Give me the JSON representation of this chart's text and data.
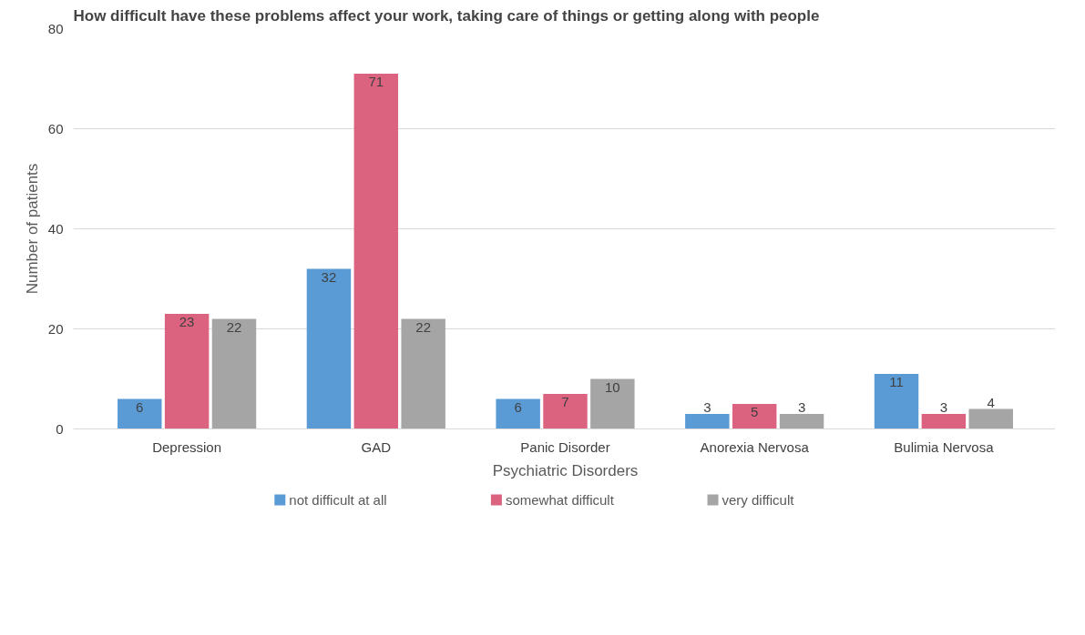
{
  "chart_data": {
    "type": "bar",
    "title": "How difficult have these problems affect your work, taking care of things or getting along with people",
    "xlabel": "Psychiatric Disorders",
    "ylabel": "Number of patients",
    "categories": [
      "Depression",
      "GAD",
      "Panic Disorder",
      "Anorexia Nervosa",
      "Bulimia Nervosa"
    ],
    "series": [
      {
        "name": "not difficult at all",
        "color": "#5b9bd5",
        "values": [
          6,
          32,
          6,
          3,
          11
        ]
      },
      {
        "name": "somewhat difficult",
        "color": "#dc6380",
        "values": [
          23,
          71,
          7,
          5,
          3
        ]
      },
      {
        "name": "very difficult",
        "color": "#a5a5a5",
        "values": [
          22,
          22,
          10,
          3,
          4
        ]
      }
    ],
    "ylim": [
      0,
      80
    ],
    "yticks": [
      0,
      20,
      40,
      60,
      80
    ],
    "grid": "y",
    "legend": "bottom",
    "data_labels": true
  }
}
